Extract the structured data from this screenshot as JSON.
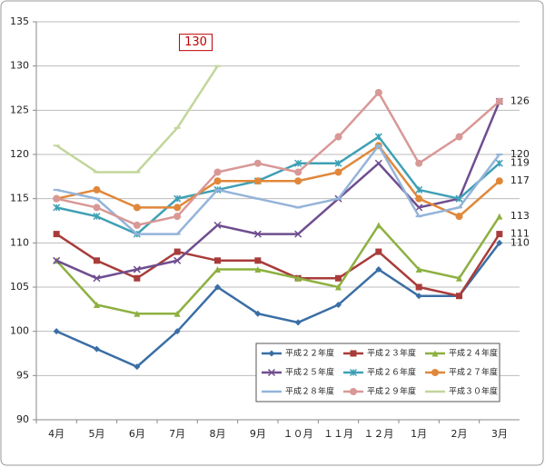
{
  "chart_data": {
    "type": "line",
    "categories": [
      "4月",
      "5月",
      "6月",
      "7月",
      "8月",
      "9月",
      "１０月",
      "１１月",
      "１２月",
      "1月",
      "2月",
      "3月"
    ],
    "ylim": [
      90,
      135
    ],
    "yticks": [
      90,
      95,
      100,
      105,
      110,
      115,
      120,
      125,
      130,
      135
    ],
    "grid": true,
    "legend": "bottom-right",
    "series": [
      {
        "name": "平成２２年度",
        "color": "#3a6ea5",
        "marker": "diamond",
        "show_last_label": true,
        "values": [
          100,
          98,
          96,
          100,
          105,
          102,
          101,
          103,
          107,
          104,
          104,
          110
        ]
      },
      {
        "name": "平成２３年度",
        "color": "#a83c3a",
        "marker": "square",
        "show_last_label": true,
        "values": [
          111,
          108,
          106,
          109,
          108,
          108,
          106,
          106,
          109,
          105,
          104,
          111
        ]
      },
      {
        "name": "平成２４年度",
        "color": "#8db040",
        "marker": "triangle",
        "show_last_label": true,
        "values": [
          108,
          103,
          102,
          102,
          107,
          107,
          106,
          105,
          112,
          107,
          106,
          113
        ]
      },
      {
        "name": "平成２５年度",
        "color": "#6f4e8f",
        "marker": "x",
        "show_last_label": false,
        "values": [
          108,
          106,
          107,
          108,
          112,
          111,
          111,
          115,
          119,
          114,
          115,
          126
        ]
      },
      {
        "name": "平成２６年度",
        "color": "#3fa0b5",
        "marker": "star",
        "show_last_label": true,
        "values": [
          114,
          113,
          111,
          115,
          116,
          117,
          119,
          119,
          122,
          116,
          115,
          119
        ]
      },
      {
        "name": "平成２７年度",
        "color": "#e0873a",
        "marker": "circle",
        "show_last_label": true,
        "values": [
          115,
          116,
          114,
          114,
          117,
          117,
          117,
          118,
          121,
          115,
          113,
          117
        ]
      },
      {
        "name": "平成２８年度",
        "color": "#94b4da",
        "marker": "dash",
        "show_last_label": true,
        "values": [
          116,
          115,
          111,
          111,
          116,
          115,
          114,
          115,
          121,
          113,
          114,
          120
        ]
      },
      {
        "name": "平成２９年度",
        "color": "#d89896",
        "marker": "circle",
        "show_last_label": true,
        "values": [
          115,
          114,
          112,
          113,
          118,
          119,
          118,
          122,
          127,
          119,
          122,
          126
        ]
      },
      {
        "name": "平成３０年度",
        "color": "#c2d69b",
        "marker": "dash",
        "show_last_label": true,
        "label_style": "boxed",
        "values": [
          121,
          118,
          118,
          123,
          130,
          null,
          null,
          null,
          null,
          null,
          null,
          null
        ]
      }
    ]
  }
}
